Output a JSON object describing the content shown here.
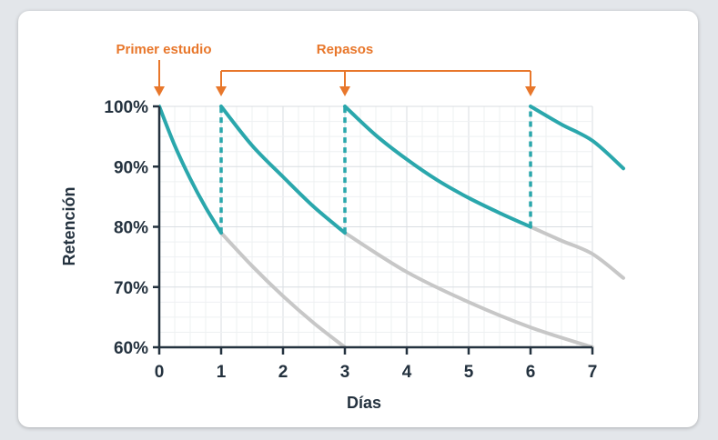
{
  "chart_data": {
    "type": "line",
    "xlabel": "Días",
    "ylabel": "Retención",
    "x_ticks": [
      "0",
      "1",
      "2",
      "3",
      "4",
      "5",
      "6",
      "7"
    ],
    "y_ticks": [
      "60%",
      "70%",
      "80%",
      "90%",
      "100%"
    ],
    "xlim": [
      0,
      7
    ],
    "ylim": [
      60,
      100
    ],
    "grid": true,
    "annotations": {
      "first_study": "Primer estudio",
      "reviews": "Repasos"
    },
    "first_study_day": 0,
    "review_days": [
      1,
      3,
      6
    ],
    "series": [
      {
        "role": "reviewed",
        "color": "#2aa7ac",
        "segments": [
          {
            "x": [
              0,
              0.25,
              0.5,
              0.75,
              1
            ],
            "y": [
              100,
              93.5,
              88,
              83.2,
              79
            ]
          },
          {
            "x": [
              1,
              1.5,
              2,
              2.5,
              3
            ],
            "y": [
              100,
              93.5,
              88.3,
              83.3,
              79
            ]
          },
          {
            "x": [
              3,
              3.5,
              4,
              4.5,
              5,
              5.5,
              6
            ],
            "y": [
              100,
              95.2,
              91.2,
              87.7,
              84.8,
              82.3,
              80
            ]
          },
          {
            "x": [
              6,
              6.5,
              7,
              7.5
            ],
            "y": [
              100,
              97,
              94.3,
              89.7
            ]
          }
        ]
      },
      {
        "role": "forgetting",
        "color": "#c7c7c7",
        "segments": [
          {
            "x": [
              1,
              1.5,
              2,
              2.5,
              3
            ],
            "y": [
              79,
              73.5,
              68.5,
              64,
              60
            ]
          },
          {
            "x": [
              3,
              4,
              5,
              6,
              7
            ],
            "y": [
              79,
              72.5,
              67.5,
              63.3,
              60
            ]
          },
          {
            "x": [
              6,
              6.5,
              7,
              7.5
            ],
            "y": [
              80,
              77.7,
              75.5,
              71.5
            ]
          }
        ]
      },
      {
        "role": "review-jumps",
        "color": "#2aa7ac",
        "dashed": true,
        "segments": [
          {
            "x": [
              1,
              1
            ],
            "y": [
              79,
              100
            ]
          },
          {
            "x": [
              3,
              3
            ],
            "y": [
              79,
              100
            ]
          },
          {
            "x": [
              6,
              6
            ],
            "y": [
              80,
              100
            ]
          }
        ]
      }
    ]
  },
  "colors": {
    "accent": "#e8772b",
    "curve": "#2aa7ac",
    "forgotten": "#c7c7c7",
    "axis": "#24323f",
    "grid_major": "#d9dde2",
    "grid_minor": "#eef0f2"
  }
}
